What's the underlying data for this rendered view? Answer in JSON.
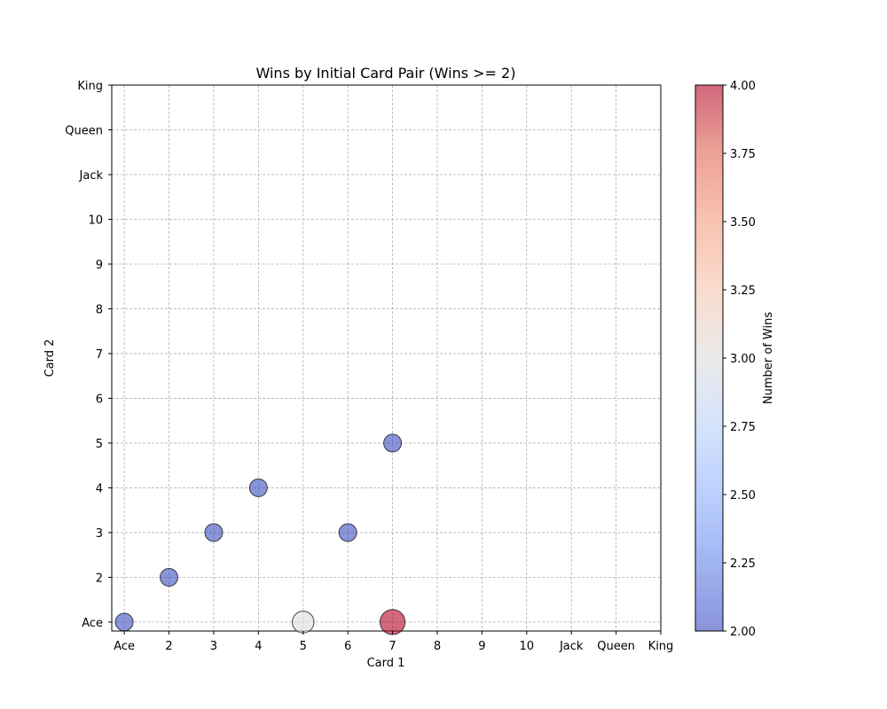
{
  "chart_data": {
    "type": "scatter",
    "title": "Wins by Initial Card Pair (Wins >= 2)",
    "xlabel": "Card 1",
    "ylabel": "Card 2",
    "x_tick_labels": [
      "Ace",
      "2",
      "3",
      "4",
      "5",
      "6",
      "7",
      "8",
      "9",
      "10",
      "Jack",
      "Queen",
      "King"
    ],
    "y_tick_labels": [
      "Ace",
      "2",
      "3",
      "4",
      "5",
      "6",
      "7",
      "8",
      "9",
      "10",
      "Jack",
      "Queen",
      "King"
    ],
    "xlim": [
      0.72,
      13.0
    ],
    "ylim": [
      0.8,
      13.0
    ],
    "grid": true,
    "points": [
      {
        "x": "Ace",
        "y": "Ace",
        "wins": 2
      },
      {
        "x": "2",
        "y": "2",
        "wins": 2
      },
      {
        "x": "3",
        "y": "3",
        "wins": 2
      },
      {
        "x": "4",
        "y": "4",
        "wins": 2
      },
      {
        "x": "5",
        "y": "Ace",
        "wins": 3
      },
      {
        "x": "6",
        "y": "3",
        "wins": 2
      },
      {
        "x": "7",
        "y": "5",
        "wins": 2
      },
      {
        "x": "7",
        "y": "Ace",
        "wins": 4
      }
    ],
    "colorbar": {
      "label": "Number of Wins",
      "min": 2.0,
      "max": 4.0,
      "ticks": [
        "2.00",
        "2.25",
        "2.50",
        "2.75",
        "3.00",
        "3.25",
        "3.50",
        "3.75",
        "4.00"
      ],
      "colormap": "coolwarm"
    }
  }
}
